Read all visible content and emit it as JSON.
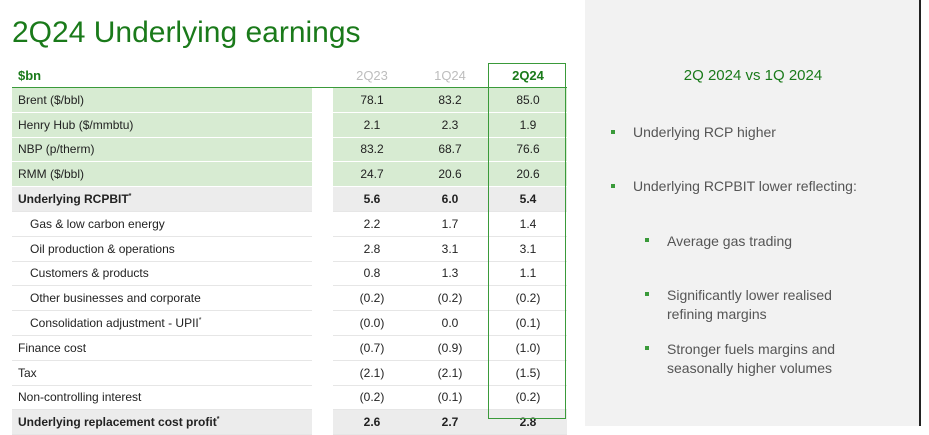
{
  "title": "2Q24 Underlying earnings",
  "table": {
    "header": [
      "$bn",
      "2Q23",
      "1Q24",
      "2Q24"
    ],
    "rows": [
      {
        "label": "Brent ($/bbl)",
        "values": [
          "78.1",
          "83.2",
          "85.0"
        ]
      },
      {
        "label": "Henry Hub ($/mmbtu)",
        "values": [
          "2.1",
          "2.3",
          "1.9"
        ]
      },
      {
        "label": "NBP (p/therm)",
        "values": [
          "83.2",
          "68.7",
          "76.6"
        ]
      },
      {
        "label": "RMM ($/bbl)",
        "values": [
          "24.7",
          "20.6",
          "20.6"
        ]
      },
      {
        "label": "Underlying RCPBIT",
        "marker": "*",
        "values": [
          "5.6",
          "6.0",
          "5.4"
        ]
      },
      {
        "label": "Gas & low carbon energy",
        "values": [
          "2.2",
          "1.7",
          "1.4"
        ]
      },
      {
        "label": "Oil production & operations",
        "values": [
          "2.8",
          "3.1",
          "3.1"
        ]
      },
      {
        "label": "Customers & products",
        "values": [
          "0.8",
          "1.3",
          "1.1"
        ]
      },
      {
        "label": "Other businesses and corporate",
        "values": [
          "(0.2)",
          "(0.2)",
          "(0.2)"
        ]
      },
      {
        "label": "Consolidation adjustment - UPII",
        "marker": "*",
        "values": [
          "(0.0)",
          "0.0",
          "(0.1)"
        ]
      },
      {
        "label": "Finance cost",
        "values": [
          "(0.7)",
          "(0.9)",
          "(1.0)"
        ]
      },
      {
        "label": "Tax",
        "values": [
          "(2.1)",
          "(2.1)",
          "(1.5)"
        ]
      },
      {
        "label": "Non-controlling interest",
        "values": [
          "(0.2)",
          "(0.1)",
          "(0.2)"
        ]
      },
      {
        "label": "Underlying replacement cost profit",
        "marker": "*",
        "values": [
          "2.6",
          "2.7",
          "2.8"
        ]
      }
    ]
  },
  "panel": {
    "heading": "2Q 2024 vs 1Q 2024",
    "bullets": [
      {
        "text": "Underlying RCP higher"
      },
      {
        "text": "Underlying RCPBIT lower reflecting:",
        "sub": [
          "Average gas trading",
          "Significantly lower realised refining margins",
          "Stronger fuels margins and seasonally higher volumes"
        ]
      }
    ]
  }
}
